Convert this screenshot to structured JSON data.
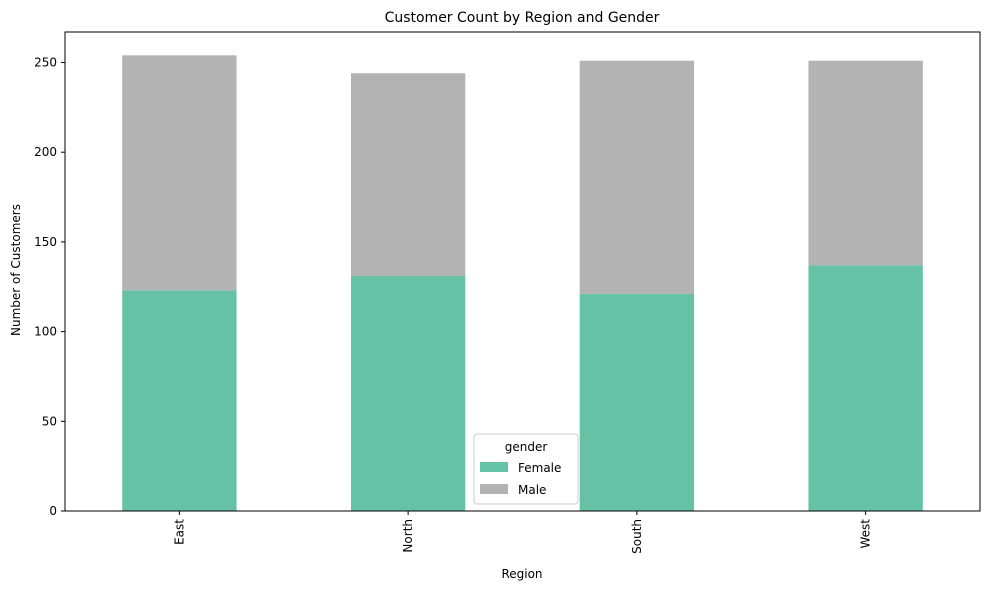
{
  "chart_data": {
    "type": "bar",
    "stacked": true,
    "title": "Customer Count by Region and Gender",
    "xlabel": "Region",
    "ylabel": "Number of Customers",
    "categories": [
      "East",
      "North",
      "South",
      "West"
    ],
    "series": [
      {
        "name": "Female",
        "values": [
          123,
          131,
          121,
          137
        ],
        "color": "#66c2a5"
      },
      {
        "name": "Male",
        "values": [
          131,
          113,
          130,
          114
        ],
        "color": "#b3b3b3"
      }
    ],
    "ylim": [
      0,
      267
    ],
    "yticks": [
      0,
      50,
      100,
      150,
      200,
      250
    ],
    "legend": {
      "title": "gender",
      "position": "bottom-center"
    },
    "grid": false
  }
}
